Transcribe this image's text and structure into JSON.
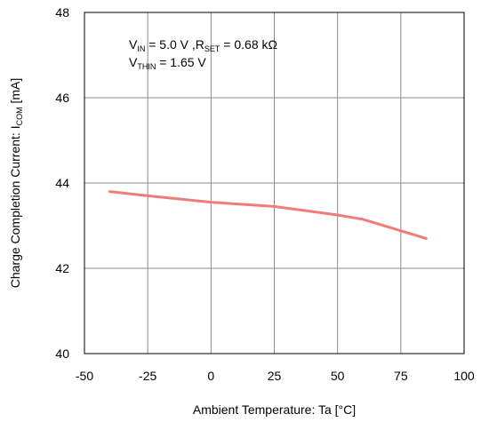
{
  "chart_data": {
    "type": "line",
    "xlabel": "Ambient Temperature: Ta [°C]",
    "ylabel": {
      "main": "Charge Completion  Current: I",
      "sub": "COM",
      "unit": " [mA]"
    },
    "xlim": [
      -50,
      100
    ],
    "ylim": [
      40,
      48
    ],
    "x_ticks": [
      -50,
      -25,
      0,
      25,
      50,
      75,
      100
    ],
    "y_ticks": [
      40,
      42,
      44,
      46,
      48
    ],
    "grid": true,
    "series": [
      {
        "color": "#f07b7b",
        "x": [
          -40,
          -25,
          0,
          25,
          50,
          60,
          85
        ],
        "y": [
          43.8,
          43.7,
          43.55,
          43.45,
          43.25,
          43.15,
          42.7
        ]
      }
    ],
    "annotations": [
      {
        "parts": [
          {
            "t": "V",
            "sub": false
          },
          {
            "t": "IN",
            "sub": true
          },
          {
            "t": " = 5.0 V ,R",
            "sub": false
          },
          {
            "t": "SET",
            "sub": true
          },
          {
            "t": " = 0.68 kΩ",
            "sub": false
          }
        ]
      },
      {
        "parts": [
          {
            "t": "V",
            "sub": false
          },
          {
            "t": "THIN",
            "sub": true
          },
          {
            "t": " = 1.65 V",
            "sub": false
          }
        ]
      }
    ]
  }
}
